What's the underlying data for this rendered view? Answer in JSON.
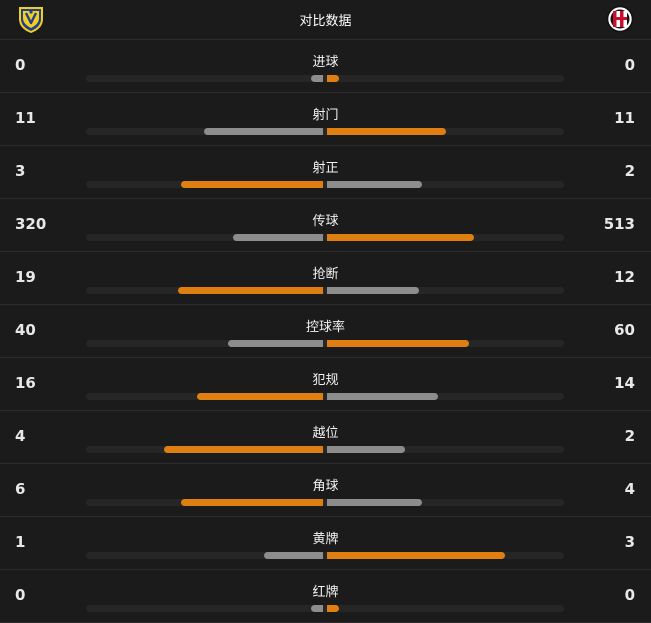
{
  "header": {
    "title": "对比数据",
    "home_logo_icon": "chievo-verona-crest-icon",
    "away_logo_icon": "ac-milan-crest-icon"
  },
  "colors": {
    "leader": "#e07f11",
    "other": "#8d8d8d",
    "track": "#262626"
  },
  "stats": [
    {
      "label": "进球",
      "home": "0",
      "away": "0",
      "home_share": 0.05,
      "away_share": 0.05
    },
    {
      "label": "射门",
      "home": "11",
      "away": "11",
      "home_share": 0.5,
      "away_share": 0.5
    },
    {
      "label": "射正",
      "home": "3",
      "away": "2",
      "home_share": 0.6,
      "away_share": 0.4
    },
    {
      "label": "传球",
      "home": "320",
      "away": "513",
      "home_share": 0.38,
      "away_share": 0.62
    },
    {
      "label": "抢断",
      "home": "19",
      "away": "12",
      "home_share": 0.61,
      "away_share": 0.39
    },
    {
      "label": "控球率",
      "home": "40",
      "away": "60",
      "home_share": 0.4,
      "away_share": 0.6
    },
    {
      "label": "犯规",
      "home": "16",
      "away": "14",
      "home_share": 0.53,
      "away_share": 0.47
    },
    {
      "label": "越位",
      "home": "4",
      "away": "2",
      "home_share": 0.67,
      "away_share": 0.33
    },
    {
      "label": "角球",
      "home": "6",
      "away": "4",
      "home_share": 0.6,
      "away_share": 0.4
    },
    {
      "label": "黄牌",
      "home": "1",
      "away": "3",
      "home_share": 0.25,
      "away_share": 0.75
    },
    {
      "label": "红牌",
      "home": "0",
      "away": "0",
      "home_share": 0.05,
      "away_share": 0.05
    }
  ]
}
